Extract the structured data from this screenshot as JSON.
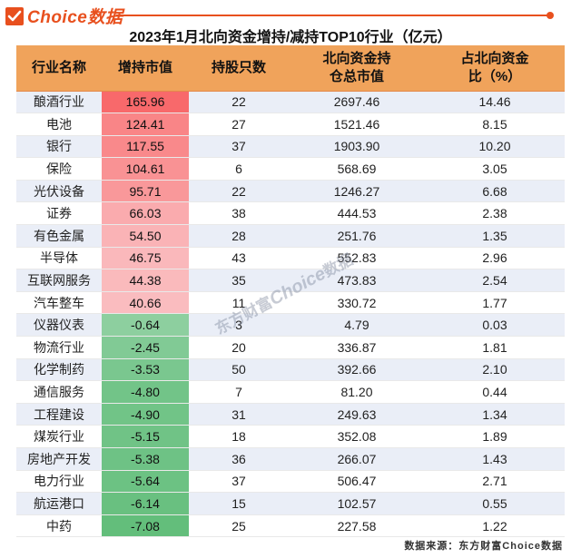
{
  "brand": {
    "logo_text": "Choice数据",
    "accent_color": "#e8501e",
    "icon": "check-icon"
  },
  "watermark": {
    "prefix": "东方财富",
    "brand": "Choice",
    "suffix": "数据"
  },
  "source": "数据来源：东方财富Choice数据",
  "chart_data": {
    "type": "table",
    "title": "2023年1月北向资金增持/减持TOP10行业（亿元）",
    "columns": [
      "行业名称",
      "增持市值",
      "持股只数",
      "北向资金持\n仓总市值",
      "占北向资金\n比（%）"
    ],
    "heat_colors": {
      "positive": "#f8696b",
      "neutral": "#fcfcff",
      "negative": "#63be7b"
    },
    "rows": [
      [
        "酿酒行业",
        "165.96",
        "22",
        "2697.46",
        "14.46"
      ],
      [
        "电池",
        "124.41",
        "27",
        "1521.46",
        "8.15"
      ],
      [
        "银行",
        "117.55",
        "37",
        "1903.90",
        "10.20"
      ],
      [
        "保险",
        "104.61",
        "6",
        "568.69",
        "3.05"
      ],
      [
        "光伏设备",
        "95.71",
        "22",
        "1246.27",
        "6.68"
      ],
      [
        "证券",
        "66.03",
        "38",
        "444.53",
        "2.38"
      ],
      [
        "有色金属",
        "54.50",
        "28",
        "251.76",
        "1.35"
      ],
      [
        "半导体",
        "46.75",
        "43",
        "552.83",
        "2.96"
      ],
      [
        "互联网服务",
        "44.38",
        "35",
        "473.83",
        "2.54"
      ],
      [
        "汽车整车",
        "40.66",
        "11",
        "330.72",
        "1.77"
      ],
      [
        "仪器仪表",
        "-0.64",
        "3",
        "4.79",
        "0.03"
      ],
      [
        "物流行业",
        "-2.45",
        "20",
        "336.87",
        "1.81"
      ],
      [
        "化学制药",
        "-3.53",
        "50",
        "392.66",
        "2.10"
      ],
      [
        "通信服务",
        "-4.80",
        "7",
        "81.20",
        "0.44"
      ],
      [
        "工程建设",
        "-4.90",
        "31",
        "249.63",
        "1.34"
      ],
      [
        "煤炭行业",
        "-5.15",
        "18",
        "352.08",
        "1.89"
      ],
      [
        "房地产开发",
        "-5.38",
        "36",
        "266.07",
        "1.43"
      ],
      [
        "电力行业",
        "-5.64",
        "37",
        "506.47",
        "2.71"
      ],
      [
        "航运港口",
        "-6.14",
        "15",
        "102.57",
        "0.55"
      ],
      [
        "中药",
        "-7.08",
        "25",
        "227.58",
        "1.22"
      ]
    ]
  }
}
